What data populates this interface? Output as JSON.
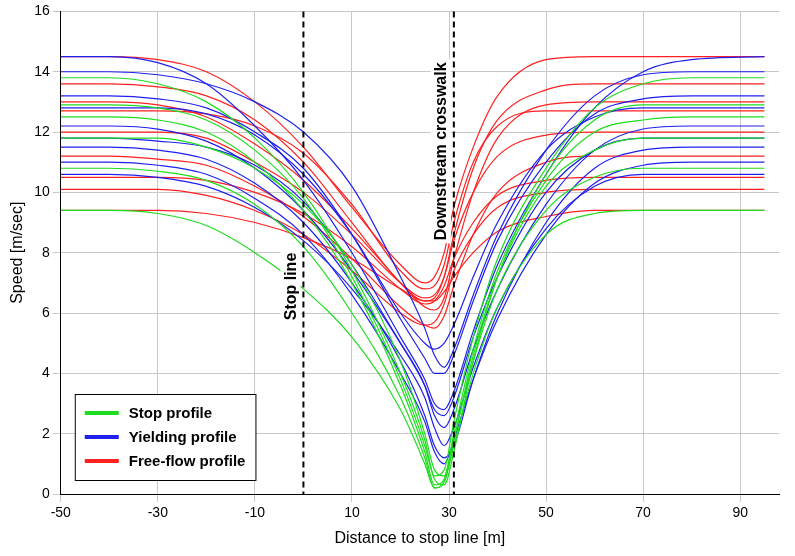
{
  "chart_data": {
    "type": "line",
    "x_label": "Distance to stop line [m]",
    "y_label": "Speed [m/sec]",
    "xlim": [
      -50,
      98
    ],
    "xticks": [
      -50,
      -30,
      -10,
      10,
      30,
      50,
      70,
      90
    ],
    "ylim": [
      0,
      16
    ],
    "yticks": [
      0,
      2,
      4,
      6,
      8,
      10,
      12,
      14,
      16
    ],
    "grid": true,
    "legend": "lower left",
    "x": [
      -50,
      -40,
      -30,
      -20,
      -10,
      0,
      10,
      20,
      25,
      27,
      29,
      31,
      35,
      40,
      50,
      60,
      70,
      80,
      95
    ],
    "annotations": [
      {
        "x": 0,
        "text": "Stop line"
      },
      {
        "x": 31,
        "text": "Downstream crosswalk"
      }
    ],
    "series": [
      {
        "name": "Stop profile",
        "color": "#1edc1e",
        "values": [
          [
            13.8,
            13.8,
            13.6,
            13.0,
            11.8,
            10.0,
            7.4,
            4.0,
            1.8,
            0.6,
            0.8,
            2.4,
            5.2,
            7.8,
            10.8,
            12.8,
            13.6,
            13.8,
            13.8
          ],
          [
            12.5,
            12.5,
            12.4,
            12.0,
            11.0,
            9.4,
            7.0,
            3.6,
            1.4,
            0.3,
            0.5,
            2.0,
            4.8,
            7.4,
            10.4,
            12.0,
            12.4,
            12.5,
            12.5
          ],
          [
            10.8,
            10.8,
            10.7,
            10.4,
            9.6,
            8.2,
            6.0,
            3.2,
            1.2,
            0.2,
            0.4,
            1.8,
            4.4,
            6.8,
            9.4,
            10.5,
            10.8,
            10.8,
            10.8
          ],
          [
            9.4,
            9.4,
            9.3,
            8.9,
            8.0,
            6.8,
            5.2,
            2.8,
            1.0,
            0.2,
            0.4,
            1.6,
            4.0,
            6.2,
            8.6,
            9.3,
            9.4,
            9.4,
            9.4
          ],
          [
            11.8,
            11.8,
            11.8,
            11.5,
            10.8,
            9.6,
            7.6,
            4.4,
            2.0,
            0.8,
            0.6,
            1.8,
            4.6,
            7.2,
            10.2,
            11.4,
            11.8,
            11.8,
            11.8
          ],
          [
            12.9,
            12.9,
            12.8,
            12.4,
            11.4,
            9.8,
            7.2,
            3.8,
            1.6,
            0.5,
            0.3,
            1.4,
            4.4,
            7.2,
            10.6,
            12.4,
            12.9,
            12.9,
            12.9
          ]
        ]
      },
      {
        "name": "Yielding profile",
        "color": "#2020ee",
        "values": [
          [
            14.5,
            14.5,
            14.3,
            13.6,
            12.2,
            10.4,
            8.0,
            5.2,
            3.8,
            3.0,
            2.8,
            3.4,
            5.4,
            7.6,
            10.6,
            12.8,
            14.0,
            14.4,
            14.5
          ],
          [
            12.2,
            12.2,
            12.1,
            11.7,
            10.8,
            9.4,
            7.4,
            5.0,
            3.6,
            2.6,
            2.2,
            2.8,
            4.8,
            6.8,
            9.6,
            11.4,
            12.1,
            12.2,
            12.2
          ],
          [
            10.6,
            10.6,
            10.5,
            10.2,
            9.5,
            8.4,
            6.8,
            4.6,
            3.2,
            2.2,
            1.6,
            2.2,
            4.2,
            6.2,
            8.8,
            10.2,
            10.6,
            10.6,
            10.6
          ],
          [
            13.2,
            13.2,
            13.1,
            12.8,
            12.0,
            10.8,
            8.6,
            5.8,
            4.5,
            4.0,
            4.0,
            4.6,
            6.4,
            8.4,
            11.0,
            12.6,
            13.1,
            13.2,
            13.2
          ],
          [
            11.5,
            11.5,
            11.4,
            11.1,
            10.3,
            9.0,
            7.0,
            4.4,
            2.6,
            1.6,
            1.2,
            1.6,
            3.8,
            6.0,
            9.0,
            10.8,
            11.4,
            11.5,
            11.5
          ],
          [
            12.8,
            12.8,
            12.8,
            12.6,
            11.9,
            10.6,
            8.6,
            6.0,
            5.0,
            4.8,
            5.0,
            5.6,
            7.2,
            9.0,
            11.4,
            12.5,
            12.8,
            12.8,
            12.8
          ],
          [
            11.0,
            11.0,
            10.9,
            10.6,
            9.8,
            8.6,
            6.6,
            4.0,
            2.4,
            1.4,
            1.0,
            1.8,
            3.8,
            5.8,
            8.6,
            10.3,
            10.9,
            11.0,
            11.0
          ],
          [
            14.0,
            14.0,
            13.9,
            13.6,
            13.0,
            12.0,
            10.2,
            7.2,
            5.5,
            4.6,
            4.2,
            4.8,
            6.6,
            8.6,
            11.4,
            13.2,
            13.9,
            14.0,
            14.0
          ],
          [
            11.8,
            11.8,
            11.7,
            11.5,
            10.9,
            9.7,
            7.6,
            5.0,
            3.6,
            2.8,
            2.6,
            3.2,
            5.2,
            7.2,
            10.0,
            11.4,
            11.8,
            11.8,
            11.8
          ]
        ]
      },
      {
        "name": "Free-flow profile",
        "color": "#ff2020",
        "values": [
          [
            14.5,
            14.5,
            14.4,
            14.0,
            13.0,
            11.5,
            9.5,
            7.6,
            7.0,
            7.2,
            8.0,
            9.5,
            11.5,
            13.2,
            14.4,
            14.5,
            14.5,
            14.5,
            14.5
          ],
          [
            12.0,
            12.0,
            12.0,
            11.8,
            11.0,
            10.0,
            8.6,
            7.0,
            6.5,
            6.6,
            7.2,
            8.4,
            10.0,
            11.2,
            11.9,
            12.0,
            12.0,
            12.0,
            12.0
          ],
          [
            10.5,
            10.5,
            10.5,
            10.4,
            10.0,
            9.3,
            8.2,
            6.8,
            6.3,
            6.4,
            6.9,
            7.8,
            9.0,
            9.9,
            10.4,
            10.5,
            10.5,
            10.5,
            10.5
          ],
          [
            13.0,
            13.0,
            12.9,
            12.5,
            11.6,
            10.4,
            8.8,
            7.0,
            6.2,
            6.1,
            6.5,
            7.8,
            10.0,
            11.8,
            12.9,
            13.0,
            13.0,
            13.0,
            13.0
          ],
          [
            9.4,
            9.4,
            9.4,
            9.3,
            9.0,
            8.5,
            7.8,
            6.8,
            6.4,
            6.4,
            6.7,
            7.2,
            8.0,
            8.7,
            9.2,
            9.4,
            9.4,
            9.4,
            9.4
          ],
          [
            11.2,
            11.2,
            11.1,
            10.9,
            10.2,
            9.2,
            7.8,
            6.2,
            5.6,
            5.5,
            5.9,
            6.9,
            8.6,
            10.0,
            11.0,
            11.2,
            11.2,
            11.2,
            11.2
          ],
          [
            12.7,
            12.7,
            12.7,
            12.6,
            12.2,
            11.3,
            9.6,
            7.4,
            6.8,
            6.9,
            7.6,
            9.0,
            11.0,
            12.2,
            12.7,
            12.7,
            12.7,
            12.7,
            12.7
          ],
          [
            10.1,
            10.1,
            10.1,
            9.9,
            9.4,
            8.6,
            7.4,
            6.0,
            5.6,
            5.7,
            6.3,
            7.4,
            8.6,
            9.5,
            10.0,
            10.1,
            10.1,
            10.1,
            10.1
          ],
          [
            13.6,
            13.6,
            13.5,
            13.2,
            12.4,
            11.0,
            9.0,
            7.0,
            6.4,
            6.5,
            7.2,
            8.6,
            10.8,
            12.4,
            13.4,
            13.6,
            13.6,
            13.6,
            13.6
          ]
        ]
      }
    ]
  }
}
